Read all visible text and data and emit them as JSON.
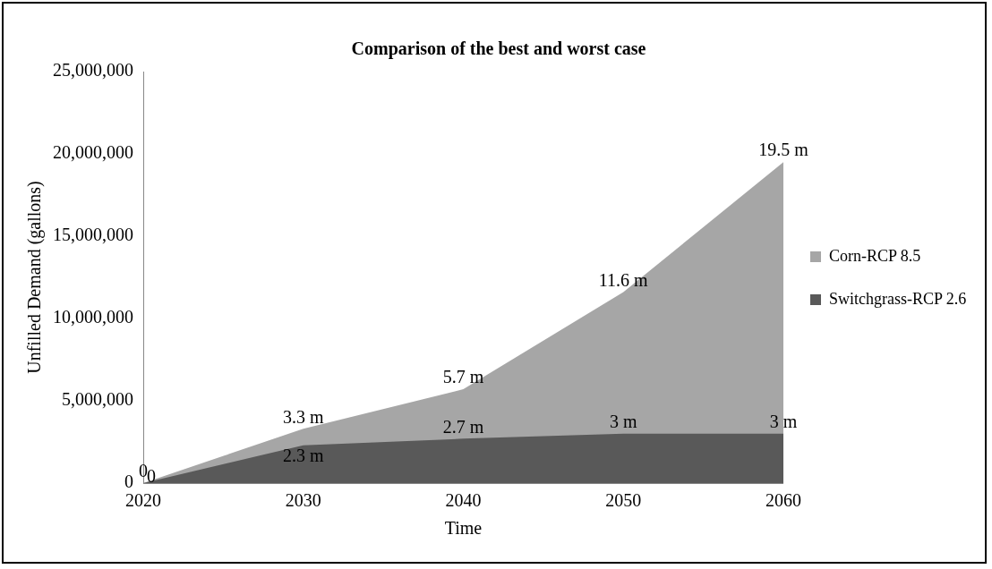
{
  "chart_data": {
    "type": "area",
    "title": "Comparison of the best and worst case",
    "xlabel": "Time",
    "ylabel": "Unfilled Demand (gallons)",
    "categories": [
      "2020",
      "2030",
      "2040",
      "2050",
      "2060"
    ],
    "series": [
      {
        "name": "Corn-RCP 8.5",
        "color": "#a6a6a6",
        "values": [
          0,
          3300000,
          5700000,
          11600000,
          19500000
        ],
        "value_labels": [
          "0",
          "3.3 m",
          "5.7 m",
          "11.6 m",
          "19.5 m"
        ]
      },
      {
        "name": "Switchgrass-RCP 2.6",
        "color": "#595959",
        "values": [
          0,
          2300000,
          2700000,
          3000000,
          3000000
        ],
        "value_labels": [
          "0",
          "2.3 m",
          "2.7 m",
          "3 m",
          "3 m"
        ]
      }
    ],
    "ylim": [
      0,
      25000000
    ],
    "yticks": [
      0,
      {
        "value": 5000000,
        "label": "5,000,000"
      },
      {
        "value": 10000000,
        "label": "10,000,000"
      },
      {
        "value": 15000000,
        "label": "15,000,000"
      },
      {
        "value": 20000000,
        "label": "20,000,000"
      },
      {
        "value": 25000000,
        "label": "25,000,000"
      }
    ],
    "grid": false,
    "legend": "right"
  }
}
